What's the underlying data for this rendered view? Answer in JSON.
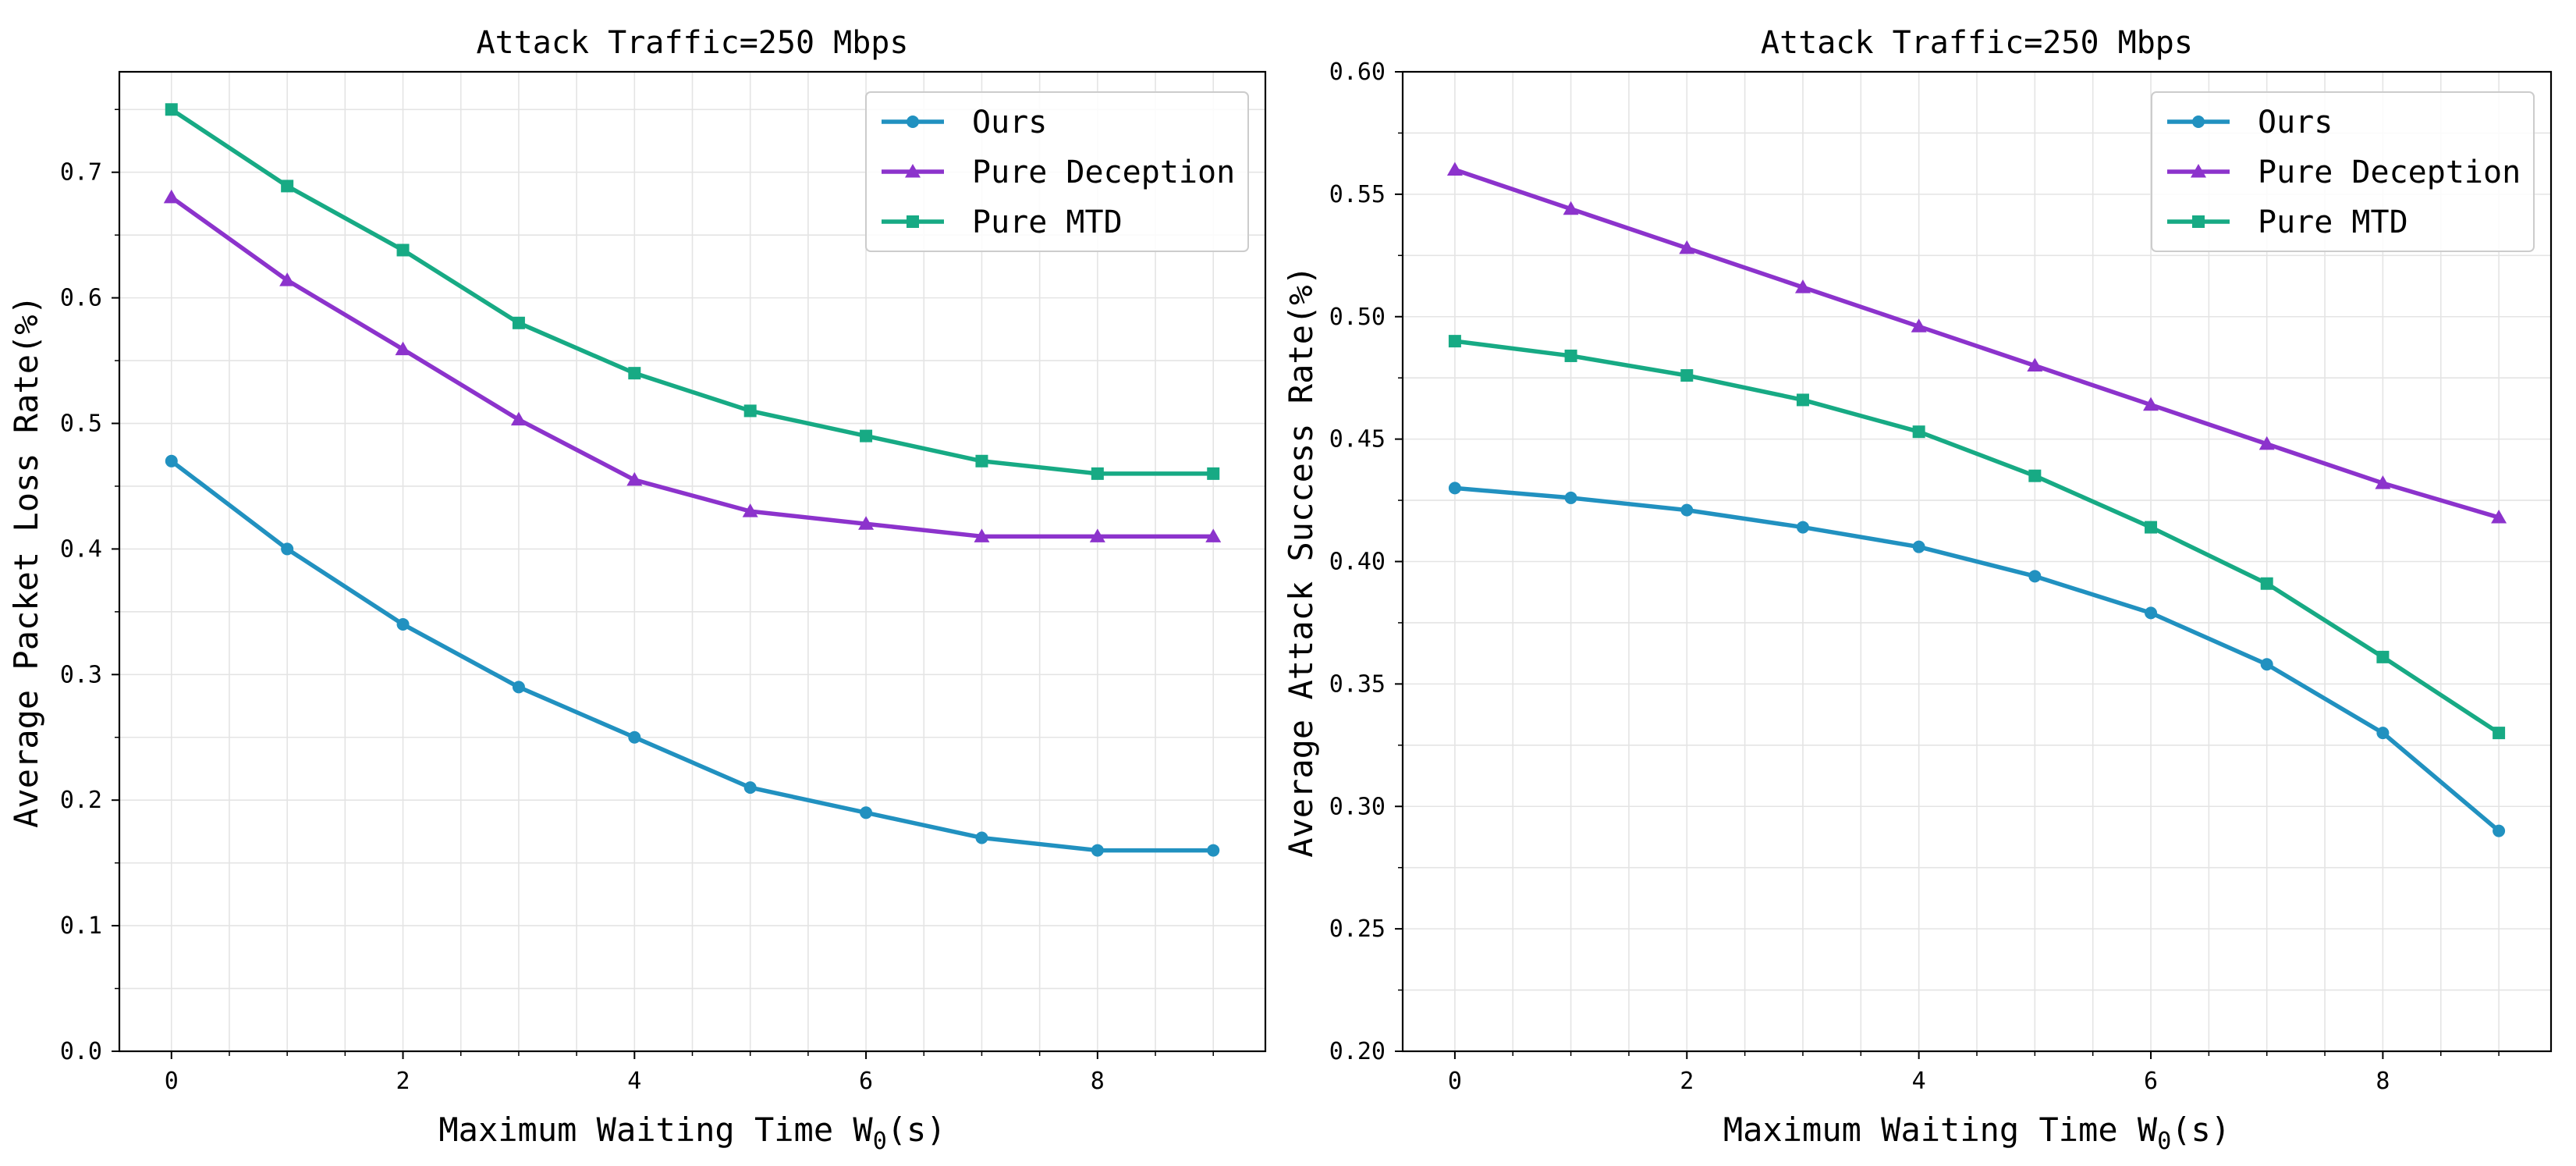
{
  "chart_data": [
    {
      "type": "line",
      "title": "Attack Traffic=250 Mbps",
      "xlabel_main": "Maximum Waiting Time W",
      "xlabel_sub": "0",
      "xlabel_unit": "(s)",
      "ylabel": "Average Packet Loss Rate(%)",
      "x": [
        0,
        1,
        2,
        3,
        4,
        5,
        6,
        7,
        8,
        9
      ],
      "xlim": [
        -0.45,
        9.45
      ],
      "ylim": [
        0.0,
        0.78
      ],
      "xticks": [
        0,
        2,
        4,
        6,
        8
      ],
      "xtick_labels": [
        "0",
        "2",
        "4",
        "6",
        "8"
      ],
      "yticks": [
        0.0,
        0.1,
        0.2,
        0.3,
        0.4,
        0.5,
        0.6,
        0.7
      ],
      "ytick_labels": [
        "0.0",
        "0.1",
        "0.2",
        "0.3",
        "0.4",
        "0.5",
        "0.6",
        "0.7"
      ],
      "grid": true,
      "legend_position": "top-right",
      "series": [
        {
          "name": "Ours",
          "color": "#2191c0",
          "marker": "circle",
          "values": [
            0.47,
            0.4,
            0.34,
            0.29,
            0.25,
            0.21,
            0.19,
            0.17,
            0.16,
            0.16
          ]
        },
        {
          "name": "Pure Deception",
          "color": "#8c33cc",
          "marker": "triangle",
          "values": [
            0.68,
            0.614,
            0.559,
            0.503,
            0.455,
            0.43,
            0.42,
            0.41,
            0.41,
            0.41
          ]
        },
        {
          "name": "Pure MTD",
          "color": "#17aa84",
          "marker": "square",
          "values": [
            0.75,
            0.689,
            0.638,
            0.58,
            0.54,
            0.51,
            0.49,
            0.47,
            0.46,
            0.46
          ]
        }
      ]
    },
    {
      "type": "line",
      "title": "Attack Traffic=250 Mbps",
      "xlabel_main": "Maximum Waiting Time W",
      "xlabel_sub": "0",
      "xlabel_unit": "(s)",
      "ylabel": "Average Attack Success Rate(%)",
      "x": [
        0,
        1,
        2,
        3,
        4,
        5,
        6,
        7,
        8,
        9
      ],
      "xlim": [
        -0.45,
        9.45
      ],
      "ylim": [
        0.2,
        0.6
      ],
      "xticks": [
        0,
        2,
        4,
        6,
        8
      ],
      "xtick_labels": [
        "0",
        "2",
        "4",
        "6",
        "8"
      ],
      "yticks": [
        0.2,
        0.25,
        0.3,
        0.35,
        0.4,
        0.45,
        0.5,
        0.55,
        0.6
      ],
      "ytick_labels": [
        "0.20",
        "0.25",
        "0.30",
        "0.35",
        "0.40",
        "0.45",
        "0.50",
        "0.55",
        "0.60"
      ],
      "grid": true,
      "legend_position": "top-right",
      "series": [
        {
          "name": "Ours",
          "color": "#2191c0",
          "marker": "circle",
          "values": [
            0.43,
            0.426,
            0.421,
            0.414,
            0.406,
            0.394,
            0.379,
            0.358,
            0.33,
            0.29
          ]
        },
        {
          "name": "Pure Deception",
          "color": "#8c33cc",
          "marker": "triangle",
          "values": [
            0.56,
            0.544,
            0.528,
            0.512,
            0.496,
            0.48,
            0.464,
            0.448,
            0.432,
            0.418
          ]
        },
        {
          "name": "Pure MTD",
          "color": "#17aa84",
          "marker": "square",
          "values": [
            0.49,
            0.484,
            0.476,
            0.466,
            0.453,
            0.435,
            0.414,
            0.391,
            0.361,
            0.33
          ]
        }
      ]
    }
  ]
}
